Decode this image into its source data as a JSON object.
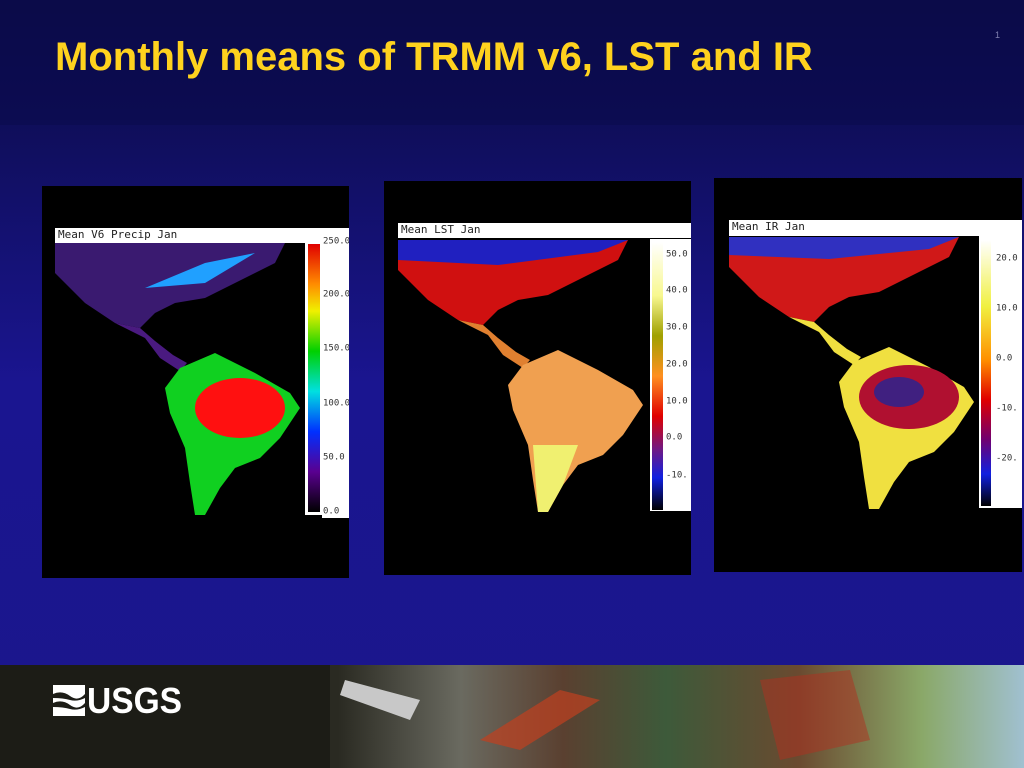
{
  "slide": {
    "title": "Monthly means of TRMM v6, LST and IR",
    "page_number": "1"
  },
  "panels": [
    {
      "title": "Mean V6 Precip  Jan",
      "colorbar_labels": [
        "250.0",
        "200.0",
        "150.0",
        "100.0",
        "50.0",
        "0.0"
      ]
    },
    {
      "title": "Mean LST Jan",
      "colorbar_labels": [
        "50.0",
        "40.0",
        "30.0",
        "20.0",
        "10.0",
        "0.0",
        "-10."
      ]
    },
    {
      "title": "Mean IR Jan",
      "colorbar_labels": [
        "20.0",
        "10.0",
        "0.0",
        "-10.",
        "-20."
      ]
    }
  ],
  "footer": {
    "logo": "USGS"
  }
}
